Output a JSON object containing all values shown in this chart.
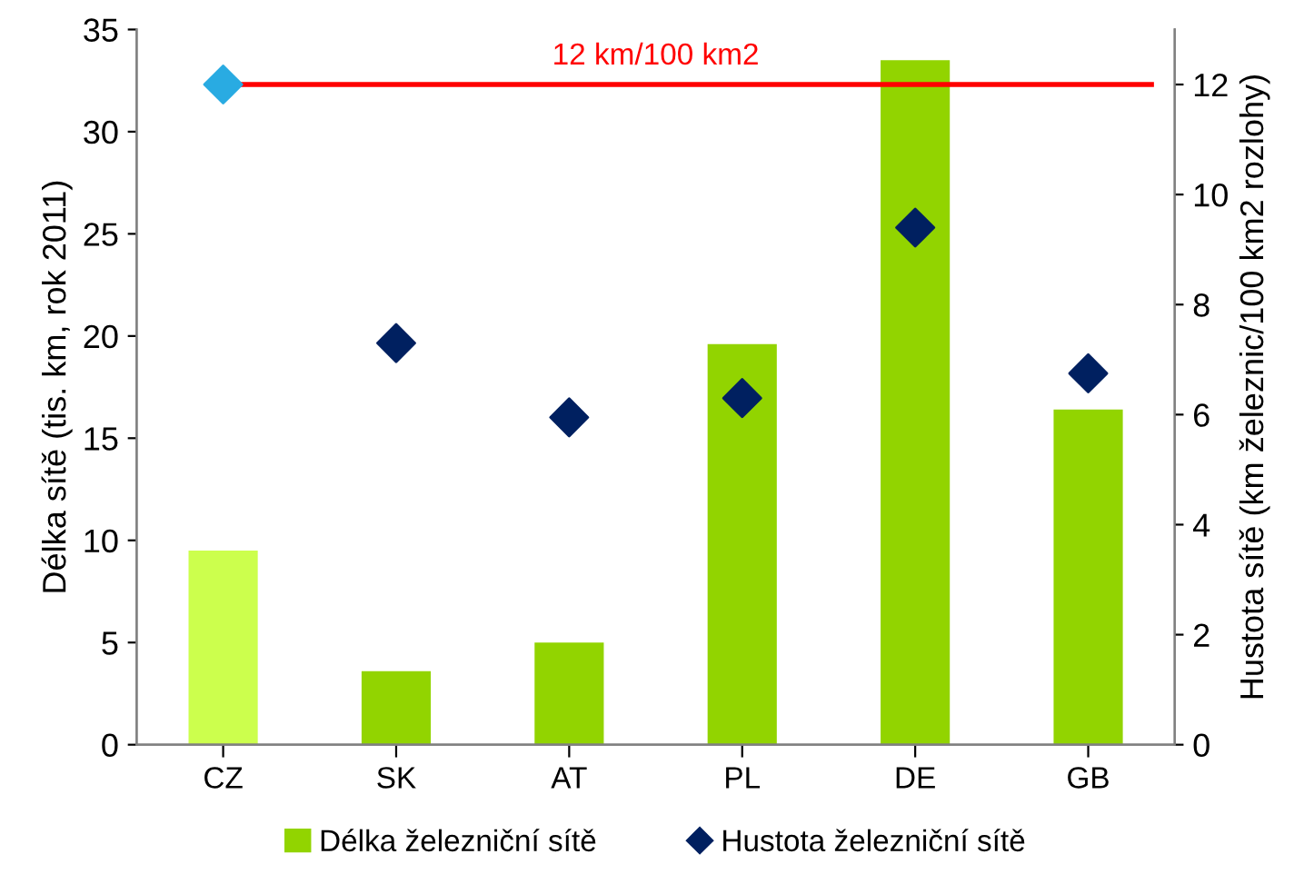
{
  "chart_data": {
    "type": "bar",
    "categories": [
      "CZ",
      "SK",
      "AT",
      "PL",
      "DE",
      "GB"
    ],
    "ylabel": "Délka sítě (tis. km, rok 2011)",
    "y2label": "Hustota sítě (km železnic/100 km2 rozlohy)",
    "series": [
      {
        "name": "Délka železniční sítě",
        "color": "#92d400",
        "colors": [
          "#ccff4d",
          "#92d400",
          "#92d400",
          "#92d400",
          "#92d400",
          "#92d400"
        ],
        "values": [
          9.5,
          3.6,
          5.0,
          19.6,
          33.5,
          16.4
        ]
      },
      {
        "name": "Hustota železniční sítě",
        "type": "scatter",
        "axis": "y2",
        "marker": "diamond",
        "color": "#002060",
        "colors": [
          "#29abe2",
          "#002060",
          "#002060",
          "#002060",
          "#002060",
          "#002060"
        ],
        "values": [
          12,
          7.3,
          5.95,
          6.3,
          9.4,
          6.75
        ]
      }
    ],
    "ylim": [
      0,
      35
    ],
    "yticks": [
      0,
      5,
      10,
      15,
      20,
      25,
      30,
      35
    ],
    "y2lim": [
      0,
      13
    ],
    "y2ticks": [
      0,
      2,
      4,
      6,
      8,
      10,
      12
    ],
    "ref_lines": [
      {
        "axis": "y2",
        "value": 12,
        "label": "12 km/100 km2",
        "color": "#ff0000",
        "line_style": "solid"
      }
    ],
    "legend": "bottom"
  }
}
